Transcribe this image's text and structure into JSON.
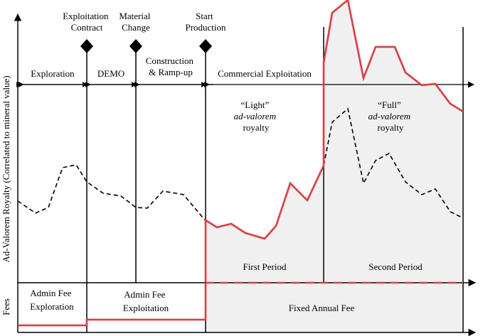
{
  "milestones": {
    "exploitation_contract": [
      "Exploitation",
      "Contract"
    ],
    "material_change": [
      "Material",
      "Change"
    ],
    "start_production": [
      "Start",
      "Production"
    ]
  },
  "phases": {
    "exploration": "Exploration",
    "demo": "DEMO",
    "construction": [
      "Construction",
      "& Ramp-up"
    ],
    "commercial": "Commercial Exploitation"
  },
  "royalty_regimes": {
    "light": {
      "quoted": "“Light”",
      "term": "ad-valorem",
      "word": "royalty"
    },
    "full": {
      "quoted": "“Full”",
      "term": "ad-valorem",
      "word": "royalty"
    }
  },
  "periods": {
    "first": "First Period",
    "second": "Second Period"
  },
  "fees": {
    "exploration": [
      "Admin Fee",
      "Exploration"
    ],
    "exploitation": [
      "Admin Fee",
      "Exploitation"
    ],
    "fixed_annual": "Fixed Annual Fee"
  },
  "axes": {
    "y_label": "Ad-Valorem Royalty (Correlated to mineral value)",
    "fees_label": "Fees"
  },
  "colors": {
    "royalty_line": "#e8383d",
    "shade": "#f0f0f0",
    "ink": "#000000"
  }
}
